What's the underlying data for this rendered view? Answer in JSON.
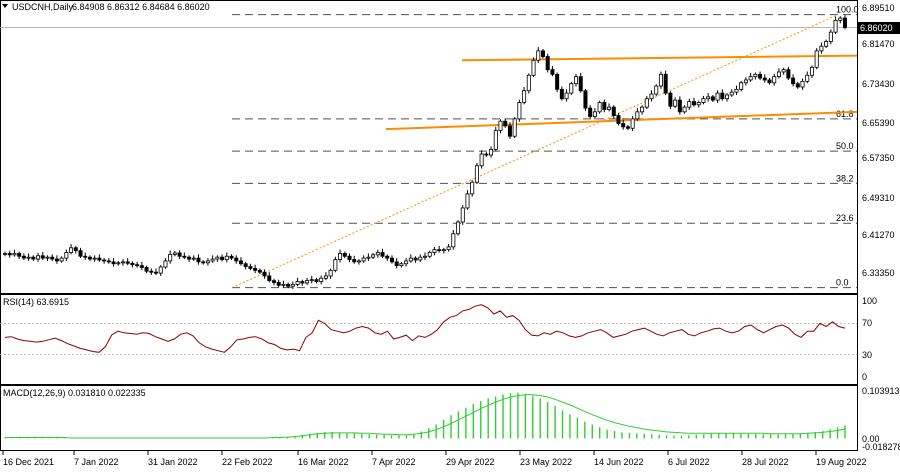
{
  "header": {
    "symbol_label": "USDCNH,Daily",
    "ohlc": "6.84908 6.86312 6.84684 6.86020",
    "current_price": "6.86020"
  },
  "price_axis": {
    "ticks": [
      "6.89510",
      "6.81470",
      "6.73430",
      "6.65390",
      "6.57350",
      "6.49310",
      "6.41270",
      "6.33350"
    ],
    "min": 6.3,
    "max": 6.91
  },
  "fibonacci": {
    "high": 6.8873,
    "low": 6.305,
    "levels": [
      {
        "label": "100.0",
        "ratio": 1.0
      },
      {
        "label": "61.8",
        "ratio": 0.618
      },
      {
        "label": "50.0",
        "ratio": 0.5
      },
      {
        "label": "38.2",
        "ratio": 0.382
      },
      {
        "label": "23.6",
        "ratio": 0.236
      },
      {
        "label": "0.0",
        "ratio": 0.0
      }
    ]
  },
  "rsi": {
    "label": "RSI(14) 63.6915",
    "ticks": [
      "100",
      "70",
      "30",
      "0"
    ],
    "levels": [
      70,
      30
    ]
  },
  "macd": {
    "label": "MACD(12,26,9) 0.031810 0.022335",
    "ticks": [
      "0.103913",
      "0.00",
      "-0.018278"
    ],
    "max": 0.103913,
    "min": -0.018278
  },
  "time_axis": {
    "labels": [
      "16 Dec 2021",
      "7 Jan 2022",
      "31 Jan 2022",
      "22 Feb 2022",
      "16 Mar 2022",
      "7 Apr 2022",
      "29 Apr 2022",
      "23 May 2022",
      "14 Jun 2022",
      "6 Jul 2022",
      "28 Jul 2022",
      "19 Aug 2022"
    ]
  },
  "colors": {
    "bull_fill": "#ffffff",
    "bear_fill": "#000000",
    "channel": "#ff8c00",
    "fib_dashed": "#505050",
    "fib_dotted": "#ff8c00",
    "rsi_line": "#8b0000",
    "macd_hist": "#32cd32",
    "macd_signal": "#32cd32"
  },
  "chart_data": {
    "type": "candlestick",
    "symbol": "USDCNH",
    "timeframe": "Daily",
    "price_points": [
      6.378,
      6.375,
      6.378,
      6.372,
      6.368,
      6.37,
      6.366,
      6.373,
      6.368,
      6.37,
      6.366,
      6.362,
      6.368,
      6.38,
      6.39,
      6.384,
      6.372,
      6.37,
      6.366,
      6.368,
      6.364,
      6.362,
      6.36,
      6.356,
      6.358,
      6.36,
      6.357,
      6.354,
      6.352,
      6.348,
      6.34,
      6.338,
      6.336,
      6.349,
      6.362,
      6.376,
      6.379,
      6.372,
      6.37,
      6.366,
      6.368,
      6.36,
      6.358,
      6.362,
      6.366,
      6.37,
      6.365,
      6.372,
      6.368,
      6.362,
      6.356,
      6.35,
      6.346,
      6.342,
      6.338,
      6.33,
      6.32,
      6.316,
      6.31,
      6.312,
      6.308,
      6.312,
      6.318,
      6.315,
      6.32,
      6.322,
      6.318,
      6.325,
      6.33,
      6.342,
      6.365,
      6.378,
      6.372,
      6.365,
      6.36,
      6.362,
      6.368,
      6.37,
      6.375,
      6.38,
      6.372,
      6.368,
      6.36,
      6.352,
      6.356,
      6.362,
      6.368,
      6.364,
      6.37,
      6.372,
      6.38,
      6.386,
      6.384,
      6.386,
      6.392,
      6.42,
      6.445,
      6.475,
      6.505,
      6.53,
      6.565,
      6.59,
      6.588,
      6.6,
      6.64,
      6.66,
      6.65,
      6.628,
      6.665,
      6.7,
      6.725,
      6.758,
      6.79,
      6.81,
      6.798,
      6.77,
      6.76,
      6.728,
      6.708,
      6.72,
      6.74,
      6.755,
      6.725,
      6.688,
      6.67,
      6.68,
      6.7,
      6.685,
      6.69,
      6.672,
      6.655,
      6.648,
      6.645,
      6.665,
      6.68,
      6.69,
      6.708,
      6.718,
      6.735,
      6.76,
      6.72,
      6.692,
      6.705,
      6.68,
      6.69,
      6.702,
      6.695,
      6.7,
      6.708,
      6.712,
      6.705,
      6.72,
      6.708,
      6.716,
      6.722,
      6.728,
      6.742,
      6.748,
      6.755,
      6.76,
      6.752,
      6.748,
      6.742,
      6.755,
      6.765,
      6.77,
      6.752,
      6.74,
      6.733,
      6.745,
      6.758,
      6.775,
      6.81,
      6.82,
      6.83,
      6.85,
      6.875,
      6.88,
      6.86
    ],
    "rsi_points": [
      52,
      53,
      50,
      48,
      47,
      46,
      47,
      49,
      51,
      48,
      44,
      41,
      38,
      36,
      34,
      33,
      40,
      55,
      60,
      58,
      57,
      56,
      58,
      57,
      53,
      50,
      47,
      50,
      56,
      58,
      54,
      45,
      40,
      37,
      35,
      33,
      40,
      49,
      50,
      52,
      53,
      50,
      45,
      43,
      38,
      36,
      37,
      35,
      52,
      58,
      74,
      70,
      62,
      60,
      58,
      60,
      64,
      66,
      64,
      58,
      56,
      60,
      50,
      52,
      55,
      48,
      54,
      52,
      56,
      62,
      72,
      78,
      80,
      86,
      88,
      92,
      94,
      90,
      82,
      86,
      78,
      80,
      74,
      62,
      55,
      54,
      58,
      56,
      60,
      58,
      54,
      52,
      54,
      58,
      60,
      62,
      58,
      52,
      54,
      56,
      60,
      62,
      64,
      60,
      56,
      54,
      58,
      60,
      62,
      56,
      54,
      58,
      60,
      63,
      64,
      60,
      58,
      60,
      66,
      68,
      62,
      58,
      62,
      66,
      68,
      64,
      56,
      52,
      60,
      60,
      70,
      66,
      72,
      66,
      64
    ],
    "macd_hist": [
      0.002,
      0.002,
      0.002,
      0.002,
      0.002,
      0.002,
      0.002,
      0.002,
      0.002,
      0.002,
      0.002,
      0.002,
      0.001,
      0.001,
      0.002,
      0.002,
      0.002,
      0.002,
      0.002,
      0.002,
      0.001,
      0.001,
      0.001,
      0.001,
      0.001,
      0.0,
      0.0,
      0.0,
      0.001,
      0.001,
      0.001,
      0.001,
      0.001,
      0.001,
      0.001,
      0.002,
      0.002,
      0.002,
      0.003,
      0.005,
      0.008,
      0.01,
      0.012,
      0.014,
      0.014,
      0.013,
      0.012,
      0.011,
      0.01,
      0.009,
      0.008,
      0.008,
      0.007,
      0.007,
      0.008,
      0.01,
      0.015,
      0.022,
      0.03,
      0.04,
      0.05,
      0.058,
      0.066,
      0.074,
      0.08,
      0.086,
      0.09,
      0.094,
      0.097,
      0.098,
      0.096,
      0.092,
      0.086,
      0.078,
      0.07,
      0.06,
      0.052,
      0.044,
      0.036,
      0.03,
      0.024,
      0.019,
      0.016,
      0.013,
      0.012,
      0.011,
      0.01,
      0.009,
      0.008,
      0.007,
      0.006,
      0.006,
      0.007,
      0.008,
      0.009,
      0.01,
      0.011,
      0.012,
      0.012,
      0.011,
      0.01,
      0.01,
      0.009,
      0.009,
      0.009,
      0.01,
      0.01,
      0.011,
      0.012,
      0.014,
      0.016,
      0.02,
      0.024,
      0.028
    ],
    "macd_signal": [
      0.002,
      0.002,
      0.002,
      0.002,
      0.002,
      0.002,
      0.002,
      0.002,
      0.002,
      0.001,
      0.001,
      0.001,
      0.001,
      0.001,
      0.001,
      0.001,
      0.001,
      0.001,
      0.001,
      0.001,
      0.001,
      0.001,
      0.001,
      0.001,
      0.001,
      0.001,
      0.001,
      0.001,
      0.001,
      0.001,
      0.001,
      0.001,
      0.001,
      0.001,
      0.001,
      0.001,
      0.002,
      0.002,
      0.003,
      0.004,
      0.006,
      0.008,
      0.01,
      0.011,
      0.012,
      0.012,
      0.012,
      0.012,
      0.011,
      0.011,
      0.01,
      0.009,
      0.009,
      0.008,
      0.008,
      0.009,
      0.011,
      0.014,
      0.019,
      0.025,
      0.032,
      0.04,
      0.048,
      0.056,
      0.064,
      0.071,
      0.078,
      0.084,
      0.089,
      0.092,
      0.094,
      0.094,
      0.092,
      0.089,
      0.084,
      0.078,
      0.072,
      0.065,
      0.058,
      0.051,
      0.045,
      0.039,
      0.034,
      0.03,
      0.026,
      0.023,
      0.02,
      0.018,
      0.016,
      0.014,
      0.013,
      0.012,
      0.011,
      0.011,
      0.011,
      0.011,
      0.011,
      0.011,
      0.011,
      0.011,
      0.011,
      0.011,
      0.011,
      0.01,
      0.01,
      0.01,
      0.01,
      0.01,
      0.011,
      0.012,
      0.013,
      0.015,
      0.017,
      0.02
    ],
    "upper_channel": {
      "start": [
        "6 May 2022",
        6.79
      ],
      "end": [
        "19 Aug 2022",
        6.8
      ]
    },
    "lower_channel": {
      "start": [
        "25 Apr 2022",
        6.643
      ],
      "end": [
        "19 Aug 2022",
        6.68
      ]
    }
  }
}
